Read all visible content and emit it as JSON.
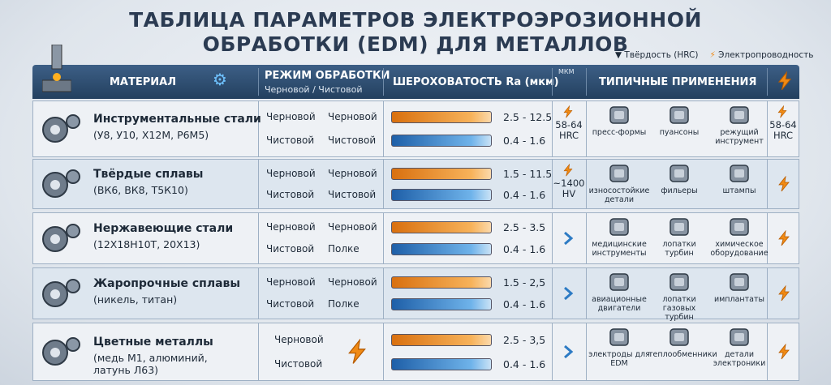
{
  "title": [
    "ТАБЛИЦА ПАРАМЕТРОВ ЭЛЕКТРОЭРОЗИОННОЙ",
    "ОБРАБОТКИ (EDM) ДЛЯ МЕТАЛЛОВ"
  ],
  "legend": [
    "Твёрдость (HRC)",
    "Электропроводность"
  ],
  "header": {
    "material": "МАТЕРИАЛ",
    "mode": "РЕЖИМ ОБРАБОТКИ",
    "mode_sub": "Черновой / Чистовой",
    "roughness": "ШЕРОХОВАТОСТЬ Ra (мкм)",
    "unit_icon": "МКМ",
    "applications": "ТИПИЧНЫЕ ПРИМЕНЕНИЯ"
  },
  "rows": [
    {
      "name": "Инструментальные стали",
      "detail": "(У8, У10, Х12М, Р6М5)",
      "modes": [
        [
          "Черновой",
          "Черновой"
        ],
        [
          "Чистовой",
          "Чистовой"
        ]
      ],
      "ra": [
        "2.5 - 12.5",
        "0.4 - 1.6"
      ],
      "hardness": "58-64 HRC",
      "apps": [
        "пресс-формы",
        "пуансоны",
        "режущий инструмент"
      ],
      "right": "58-64 HRC"
    },
    {
      "name": "Твёрдые сплавы",
      "detail": "(ВК6, ВК8, Т5К10)",
      "modes": [
        [
          "Черновой",
          "Черновой"
        ],
        [
          "Чистовой",
          "Чистовой"
        ]
      ],
      "ra": [
        "1.5 - 11.5",
        "0.4 - 1.6"
      ],
      "hardness": "~1400 HV",
      "apps": [
        "износостойкие детали",
        "фильеры",
        "штампы"
      ]
    },
    {
      "name": "Нержавеющие стали",
      "detail": "(12Х18Н10Т, 20Х13)",
      "modes": [
        [
          "Черновой",
          "Черновой"
        ],
        [
          "Чистовой",
          "Полке"
        ]
      ],
      "ra": [
        "2.5 - 3.5",
        "0.4 - 1.6"
      ],
      "apps": [
        "медицинские инструменты",
        "лопатки турбин",
        "химическое оборудование"
      ]
    },
    {
      "name": "Жаропрочные сплавы",
      "detail": "(никель, титан)",
      "modes": [
        [
          "Черновой",
          "Черновой"
        ],
        [
          "Чистовой",
          "Полке"
        ]
      ],
      "ra": [
        "1.5 - 2,5",
        "0.4 - 1.6"
      ],
      "apps": [
        "авиационные двигатели",
        "лопатки газовых турбин",
        "имплантаты"
      ]
    },
    {
      "name": "Цветные металлы",
      "detail": "(медь М1, алюминий, латунь Л63)",
      "modes": [
        [
          "Черновой"
        ],
        [
          "Чистовой"
        ]
      ],
      "ra": [
        "2.5 - 3,5",
        "0.4 - 1.6"
      ],
      "apps": [
        "электроды для EDM",
        "теплообменники",
        "детали электроники"
      ]
    }
  ]
}
